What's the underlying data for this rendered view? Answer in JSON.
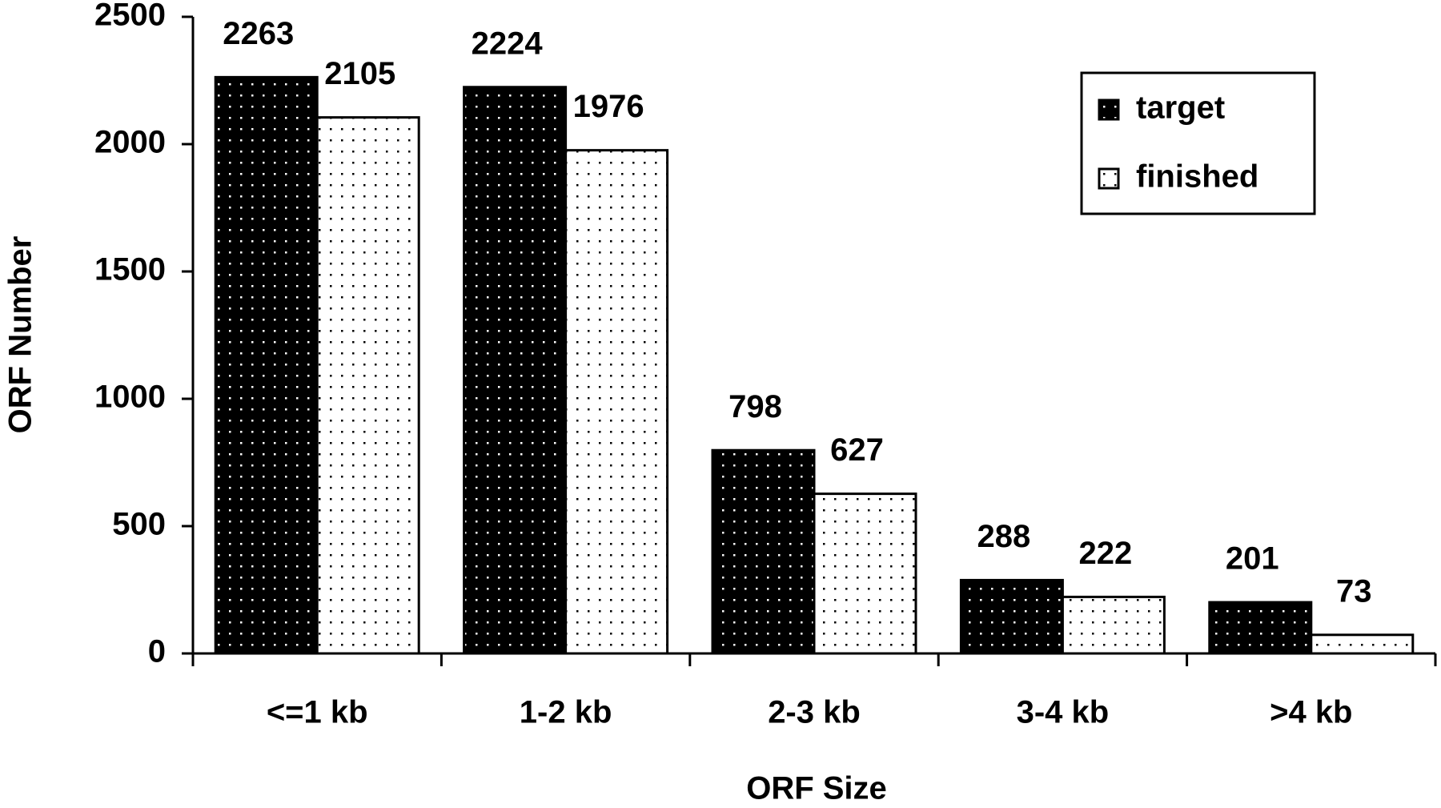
{
  "chart_data": {
    "type": "bar",
    "categories": [
      "<=1 kb",
      "1-2 kb",
      "2-3 kb",
      "3-4 kb",
      ">4 kb"
    ],
    "series": [
      {
        "name": "target",
        "color": "#000000",
        "values": [
          2263,
          2224,
          798,
          288,
          201
        ]
      },
      {
        "name": "finished",
        "color": "#ffffff",
        "values": [
          2105,
          1976,
          627,
          222,
          73
        ]
      }
    ],
    "xlabel": "ORF Size",
    "ylabel": "ORF Number",
    "ylim": [
      0,
      2500
    ],
    "yticks": [
      0,
      500,
      1000,
      1500,
      2000,
      2500
    ],
    "legend": "upper right"
  }
}
